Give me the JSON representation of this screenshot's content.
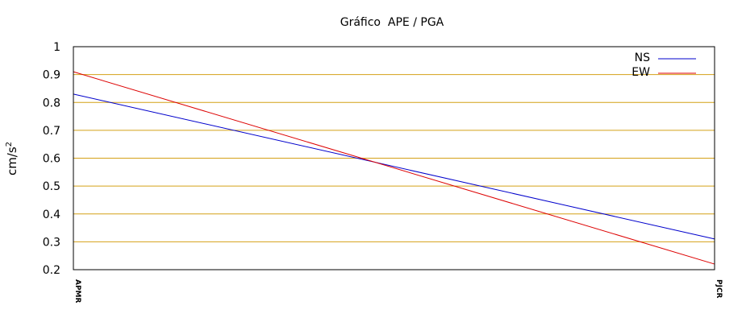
{
  "chart_data": {
    "type": "line",
    "title": "Gráfico  APE / PGA",
    "xlabel": "",
    "ylabel": "cm/s",
    "ylabel_superscript": "2",
    "categories": [
      "APMR",
      "PJCR"
    ],
    "ylim": [
      0.2,
      1
    ],
    "yticks": [
      "0.2",
      "0.3",
      "0.4",
      "0.5",
      "0.6",
      "0.7",
      "0.8",
      "0.9",
      "1"
    ],
    "grid": true,
    "grid_color": "#d4a017",
    "legend_placement": "top-right",
    "series": [
      {
        "name": "NS",
        "values": [
          0.83,
          0.31
        ],
        "color": "#0000cc"
      },
      {
        "name": "EW",
        "values": [
          0.91,
          0.22
        ],
        "color": "#dd0000"
      }
    ]
  }
}
